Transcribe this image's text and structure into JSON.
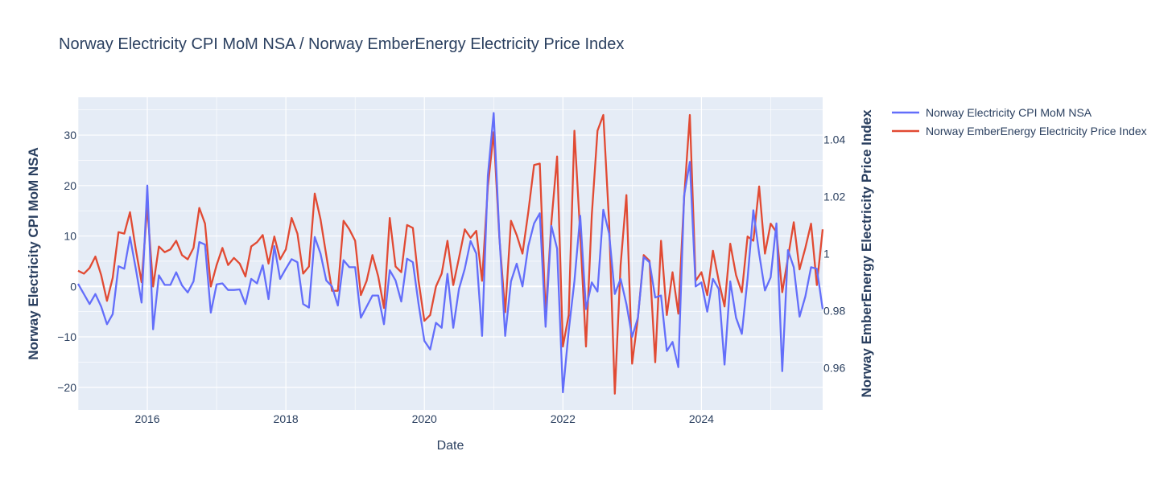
{
  "chart_data": {
    "type": "line",
    "title": "Norway Electricity CPI MoM NSA / Norway EmberEnergy Electricity Price Index",
    "xlabel": "Date",
    "ylabel": "Norway Electricity CPI MoM NSA",
    "y2label": "Norway EmberEnergy Electricity Price Index",
    "x_start": 2015.0,
    "x_step": 0.08333,
    "xlim": [
      2015.0,
      2025.75
    ],
    "ylim": [
      -24.5,
      37.5
    ],
    "y2lim": [
      0.9453,
      1.0547
    ],
    "x_ticks": [
      2016,
      2018,
      2020,
      2022,
      2024
    ],
    "x_tick_labels": [
      "2016",
      "2018",
      "2020",
      "2022",
      "2024"
    ],
    "y_ticks": [
      -20,
      -10,
      0,
      10,
      20,
      30
    ],
    "y_tick_labels": [
      "−20",
      "−10",
      "0",
      "10",
      "20",
      "30"
    ],
    "y2_ticks": [
      0.96,
      0.98,
      1.0,
      1.02,
      1.04
    ],
    "y2_tick_labels": [
      "0.96",
      "0.98",
      "1",
      "1.02",
      "1.04"
    ],
    "grid": true,
    "legend_position": "top-right outside",
    "colors": {
      "background": "#e5ecf6",
      "grid": "#ffffff",
      "text": "#2a3f5f"
    },
    "series": [
      {
        "name": "Norway Electricity CPI MoM NSA",
        "axis": "y",
        "color": "#636efa",
        "values": [
          0.5,
          -1.5,
          -3.5,
          -1.5,
          -4,
          -7.5,
          -5.5,
          4,
          3.5,
          9.8,
          3.5,
          -3.2,
          20,
          -8.5,
          2.2,
          0.3,
          0.3,
          2.8,
          0.2,
          -1.2,
          1,
          8.8,
          8.3,
          -5.2,
          0.4,
          0.6,
          -0.7,
          -0.7,
          -0.6,
          -3.5,
          1.5,
          0.6,
          4.2,
          -2.5,
          8,
          1.5,
          3.5,
          5.4,
          4.8,
          -3.5,
          -4.2,
          9.8,
          6.5,
          1.2,
          0,
          -3.8,
          5.2,
          3.8,
          3.8,
          -6.2,
          -4,
          -1.8,
          -1.8,
          -7.5,
          3.2,
          1.2,
          -3,
          5.5,
          4.8,
          -3.5,
          -10.8,
          -12.5,
          -7.2,
          -8.2,
          2.5,
          -8.2,
          -0.5,
          3.5,
          9,
          6.5,
          -9.8,
          22,
          34.4,
          10,
          -9.8,
          1,
          4.5,
          0,
          8,
          12.5,
          14.5,
          -8,
          12,
          7.5,
          -21,
          -8.8,
          1,
          14,
          -4.5,
          0.8,
          -1,
          15.2,
          10.5,
          -1.5,
          1.5,
          -3.5,
          -10,
          -6.2,
          5.8,
          4.8,
          -2.2,
          -1.8,
          -12.8,
          -11,
          -16,
          18,
          24.7,
          0,
          0.8,
          -5,
          1.5,
          -0.5,
          -15.5,
          1,
          -6.2,
          -9.4,
          1.5,
          15.1,
          6.5,
          -0.8,
          1.8,
          12.5,
          -16.8,
          7.2,
          3.8,
          -6,
          -2,
          3.8,
          3.5,
          -4.5
        ]
      },
      {
        "name": "Norway EmberEnergy Electricity Price Index",
        "axis": "y2",
        "color": "#e14a33",
        "values": [
          0.994,
          0.993,
          0.995,
          0.999,
          0.9925,
          0.9835,
          0.9915,
          1.0075,
          1.007,
          1.0145,
          1.0015,
          0.99,
          1.0165,
          0.9885,
          1.0025,
          1.0005,
          1.0015,
          1.0045,
          0.9995,
          0.998,
          1.002,
          1.016,
          1.0105,
          0.9885,
          0.996,
          1.002,
          0.996,
          0.9985,
          0.9965,
          0.992,
          1.0025,
          1.004,
          1.0065,
          0.9965,
          1.006,
          0.998,
          1.0015,
          1.0125,
          1.007,
          0.993,
          0.9955,
          1.021,
          1.012,
          0.9995,
          0.987,
          0.987,
          1.0115,
          1.0085,
          1.0045,
          0.9855,
          0.9905,
          0.9995,
          0.992,
          0.981,
          1.0125,
          0.9955,
          0.9935,
          1.01,
          1.009,
          0.9905,
          0.9765,
          0.9785,
          0.9885,
          0.993,
          1.0045,
          0.989,
          0.9985,
          1.0085,
          1.0055,
          1.008,
          0.9905,
          1.0235,
          1.0425,
          1.0055,
          0.9795,
          1.0115,
          1.0065,
          1.0,
          1.0145,
          1.031,
          1.0315,
          0.9785,
          1.011,
          1.034,
          0.9675,
          0.9785,
          1.043,
          1.007,
          0.9675,
          1.0135,
          1.043,
          1.0485,
          1.011,
          0.951,
          0.996,
          1.0205,
          0.9615,
          0.9775,
          0.9995,
          0.9975,
          0.962,
          1.0045,
          0.9785,
          0.9935,
          0.979,
          1.0195,
          1.0485,
          0.9905,
          0.9935,
          0.9855,
          1.001,
          0.9905,
          0.9815,
          1.0035,
          0.9925,
          0.9865,
          1.006,
          1.0045,
          1.0235,
          1.0,
          1.0105,
          1.0075,
          0.9865,
          0.9985,
          1.011,
          0.9945,
          1.002,
          1.0105,
          0.989,
          1.0085
        ]
      }
    ]
  }
}
